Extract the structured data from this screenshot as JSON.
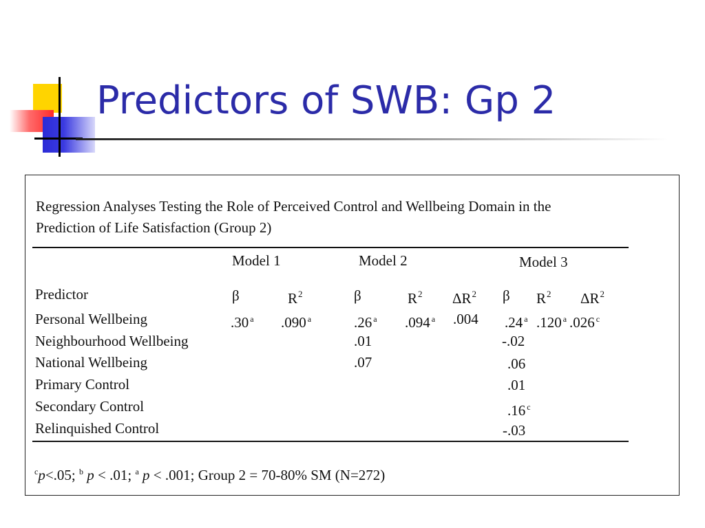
{
  "slide": {
    "title": "Predictors of SWB: Gp 2"
  },
  "table": {
    "caption_line1": "Regression Analyses Testing the Role of Perceived Control and Wellbeing Domain in the",
    "caption_line2": "Prediction of Life Satisfaction (Group 2)",
    "models": [
      "Model 1",
      "Model 2",
      "Model 3"
    ],
    "column_headers": {
      "predictor": "Predictor",
      "beta": "β",
      "r": "R",
      "delta_r": "ΔR",
      "squared": "2"
    },
    "rows": [
      {
        "label": "Personal Wellbeing",
        "m1_beta": ".30",
        "m1_beta_sup": "a",
        "m1_r2": ".090",
        "m1_r2_sup": "a",
        "m2_beta": ".26",
        "m2_beta_sup": "a",
        "m2_r2": ".094",
        "m2_r2_sup": "a",
        "m2_dr2": ".004",
        "m3_beta": ".24",
        "m3_beta_sup": "a",
        "m3_r2": ".120",
        "m3_r2_sup": "a",
        "m3_dr2": ".026",
        "m3_dr2_sup": "c"
      },
      {
        "label": "Neighbourhood Wellbeing",
        "m2_beta": ".01",
        "m3_beta": "-.02"
      },
      {
        "label": "National Wellbeing",
        "m2_beta": ".07",
        "m3_beta": ".06"
      },
      {
        "label": "Primary Control",
        "m3_beta": ".01"
      },
      {
        "label": "Secondary Control",
        "m3_beta": ".16",
        "m3_beta_sup": "c"
      },
      {
        "label": "Relinquished Control",
        "m3_beta": "-.03"
      }
    ],
    "footnote": {
      "c_mark": "c",
      "p": "p",
      "c_text": "<.05; ",
      "b_mark": "b",
      "b_text": " < .01; ",
      "a_mark": "a",
      "a_text": " < .001; Group 2 = 70-80% SM (N=272)"
    }
  }
}
